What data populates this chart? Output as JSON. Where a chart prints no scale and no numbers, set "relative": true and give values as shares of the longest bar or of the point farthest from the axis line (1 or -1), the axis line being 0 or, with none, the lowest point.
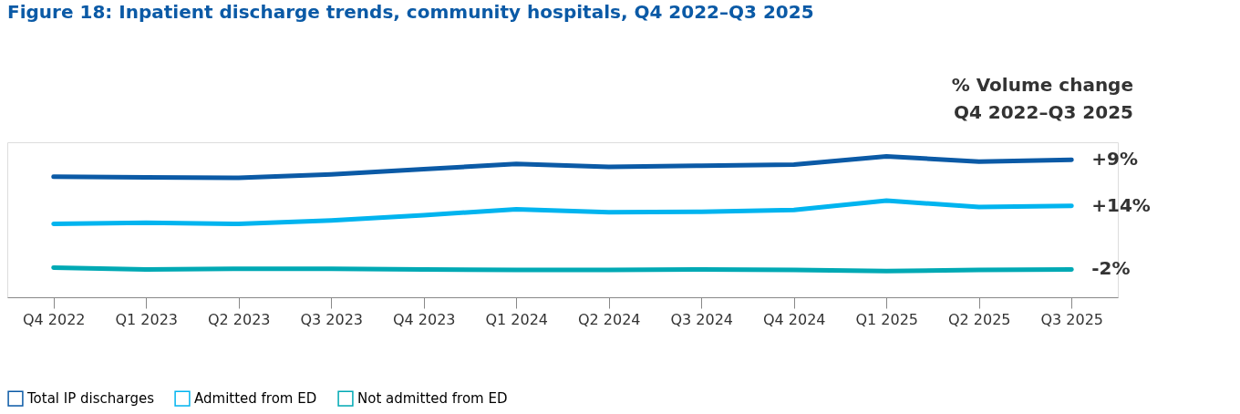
{
  "chart_data": {
    "type": "line",
    "title": "Figure 18: Inpatient discharge trends, community hospitals, Q4 2022–Q3 2025",
    "categories": [
      "Q4 2022",
      "Q1 2023",
      "Q2 2023",
      "Q3 2023",
      "Q4 2023",
      "Q1 2024",
      "Q2 2024",
      "Q3 2024",
      "Q4 2024",
      "Q1 2025",
      "Q2 2025",
      "Q3 2025"
    ],
    "relative": true,
    "grid": false,
    "legend": "bottom",
    "marker": "none",
    "line_style": "solid",
    "series": [
      {
        "name": "Total IP discharges",
        "color": "#0b5aa6",
        "values": [
          0.855,
          0.851,
          0.847,
          0.872,
          0.909,
          0.946,
          0.926,
          0.934,
          0.942,
          1,
          0.963,
          0.975
        ]
      },
      {
        "name": "Admitted from ED",
        "color": "#00b4ef",
        "values": [
          0.521,
          0.529,
          0.521,
          0.545,
          0.583,
          0.624,
          0.603,
          0.607,
          0.62,
          0.686,
          0.64,
          0.649
        ]
      },
      {
        "name": "Not admitted from ED",
        "color": "#00a9b4",
        "values": [
          0.211,
          0.198,
          0.202,
          0.202,
          0.198,
          0.194,
          0.194,
          0.198,
          0.194,
          0.186,
          0.194,
          0.198
        ]
      }
    ],
    "annotations": [
      "% Volume change\nQ4 2022–Q3 2025",
      {
        "text": "+9%",
        "x": "Q3 2025",
        "y": 0.975
      },
      {
        "text": "+14%",
        "x": "Q3 2025",
        "y": 0.649
      },
      {
        "text": "-2%",
        "x": "Q3 2025",
        "y": 0.198
      }
    ]
  }
}
